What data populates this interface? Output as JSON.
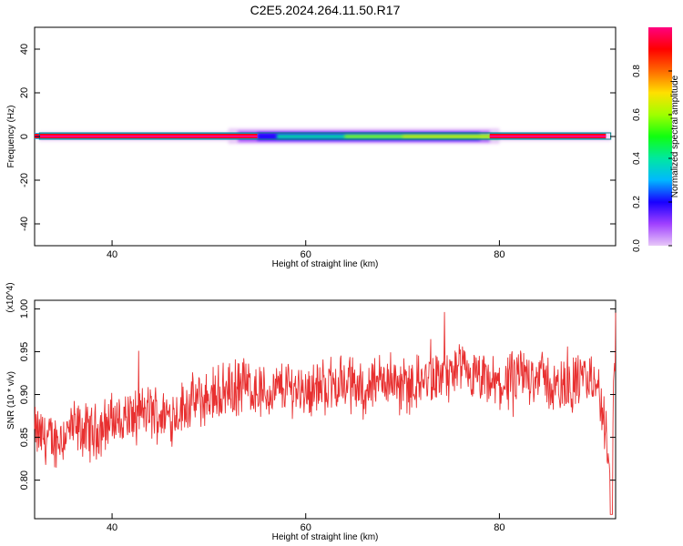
{
  "title": "C2E5.2024.264.11.50.R17",
  "chart_data": [
    {
      "type": "heatmap",
      "xlabel": "Height of straight line (km)",
      "ylabel": "Frequency (Hz)",
      "xlim": [
        32,
        92
      ],
      "ylim": [
        -50,
        50
      ],
      "xticks": [
        40,
        60,
        80
      ],
      "yticks": [
        40,
        20,
        0,
        -20,
        -40
      ],
      "xtick_labels": [
        "40",
        "60",
        "80"
      ],
      "ytick_labels": [
        "40",
        "20",
        "0",
        "-20",
        "-40"
      ],
      "grid": false,
      "colorbar": {
        "label": "Normalized spectral amplitude",
        "range": [
          0,
          1
        ],
        "ticks": [
          0.0,
          0.2,
          0.4,
          0.6,
          0.8
        ],
        "tick_labels": [
          "0.0",
          "0.2",
          "0.4",
          "0.6",
          "0.8"
        ],
        "colormap": [
          "#e8c8f8",
          "#a040ff",
          "#1800ff",
          "#00b8ff",
          "#00e8a0",
          "#10ff10",
          "#a0ff00",
          "#ffe000",
          "#ff6a00",
          "#ff0000",
          "#ff0080"
        ]
      },
      "band": {
        "center_frequency": 0,
        "strong_red_ranges": [
          [
            32,
            55
          ],
          [
            79,
            91
          ]
        ],
        "broad_region": [
          52,
          80
        ]
      }
    },
    {
      "type": "line",
      "xlabel": "Height of straight line (km)",
      "ylabel": "SNR (10 * v/v)",
      "y_multiplier": "(x10^4)",
      "xlim": [
        32,
        92
      ],
      "ylim": [
        0.755,
        1.01
      ],
      "xticks": [
        40,
        60,
        80
      ],
      "yticks": [
        0.8,
        0.85,
        0.9,
        0.95,
        1.0
      ],
      "xtick_labels": [
        "40",
        "60",
        "80"
      ],
      "ytick_labels": [
        "0.80",
        "0.85",
        "0.90",
        "0.95",
        "1.00"
      ],
      "grid": false,
      "series": [
        {
          "color": "#e83030",
          "x": [
            32,
            34,
            36,
            38,
            40,
            42,
            44,
            46,
            48,
            50,
            52,
            54,
            56,
            58,
            60,
            62,
            64,
            66,
            68,
            70,
            72,
            74,
            76,
            78,
            80,
            82,
            84,
            86,
            88,
            90,
            91.5,
            92
          ],
          "values": [
            0.855,
            0.845,
            0.86,
            0.855,
            0.87,
            0.875,
            0.88,
            0.875,
            0.89,
            0.895,
            0.905,
            0.91,
            0.9,
            0.91,
            0.905,
            0.91,
            0.915,
            0.905,
            0.92,
            0.91,
            0.915,
            0.92,
            0.925,
            0.915,
            0.91,
            0.92,
            0.925,
            0.905,
            0.915,
            0.92,
            0.82,
            0.97
          ]
        }
      ]
    }
  ]
}
